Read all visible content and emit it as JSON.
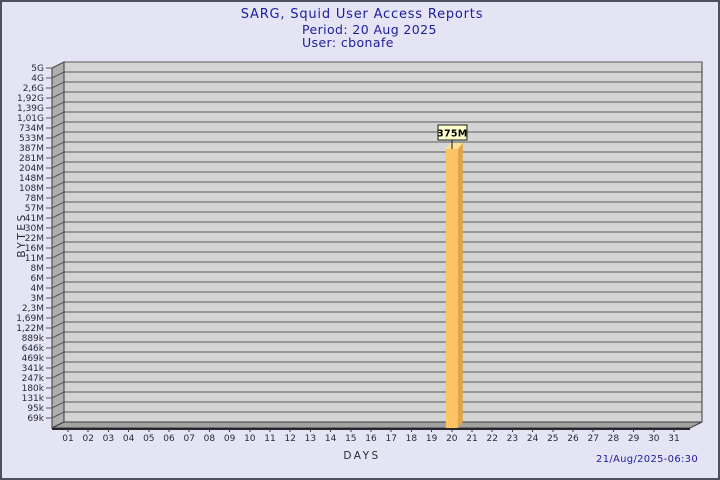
{
  "chart_data": {
    "type": "bar",
    "title": "SARG, Squid User Access Reports",
    "subtitle": [
      "Period: 20 Aug 2025",
      "User: cbonafe"
    ],
    "xlabel": "DAYS",
    "ylabel": "BYTES",
    "footer_timestamp": "21/Aug/2025-06:30",
    "x_categories": [
      "01",
      "02",
      "03",
      "04",
      "05",
      "06",
      "07",
      "08",
      "09",
      "10",
      "11",
      "12",
      "13",
      "14",
      "15",
      "16",
      "17",
      "18",
      "19",
      "20",
      "21",
      "22",
      "23",
      "24",
      "25",
      "26",
      "27",
      "28",
      "29",
      "30",
      "31"
    ],
    "y_tick_labels": [
      "5G",
      "4G",
      "2,6G",
      "1,92G",
      "1,39G",
      "1,01G",
      "734M",
      "533M",
      "387M",
      "281M",
      "204M",
      "148M",
      "108M",
      "78M",
      "57M",
      "41M",
      "30M",
      "22M",
      "16M",
      "11M",
      "8M",
      "6M",
      "4M",
      "3M",
      "2,3M",
      "1,69M",
      "1,22M",
      "889k",
      "646k",
      "469k",
      "341k",
      "247k",
      "180k",
      "131k",
      "95k",
      "69k"
    ],
    "y_scale": "log",
    "ylim_bytes": {
      "min": 69000,
      "max": 5000000000
    },
    "bars": [
      {
        "category": "20",
        "label": "375M",
        "value_bytes": 375000000
      }
    ],
    "legend": "none",
    "grid": true,
    "colors": {
      "page_bg": "#e4e4f5",
      "plot_bg": "#d4d4d4",
      "wall": "#afafaf",
      "floor": "#a2a2a2",
      "grid_line": "#5a5a5a",
      "axis_edge": "#3a3a40",
      "bar_front": "#fdc364",
      "bar_side": "#dea549",
      "bar_top": "#fbe195",
      "annotation_bg": "#ffffcc",
      "annotation_border": "#1a1a1a",
      "title_text": "#1c1c9c",
      "tick_text": "#2a2a33"
    }
  }
}
